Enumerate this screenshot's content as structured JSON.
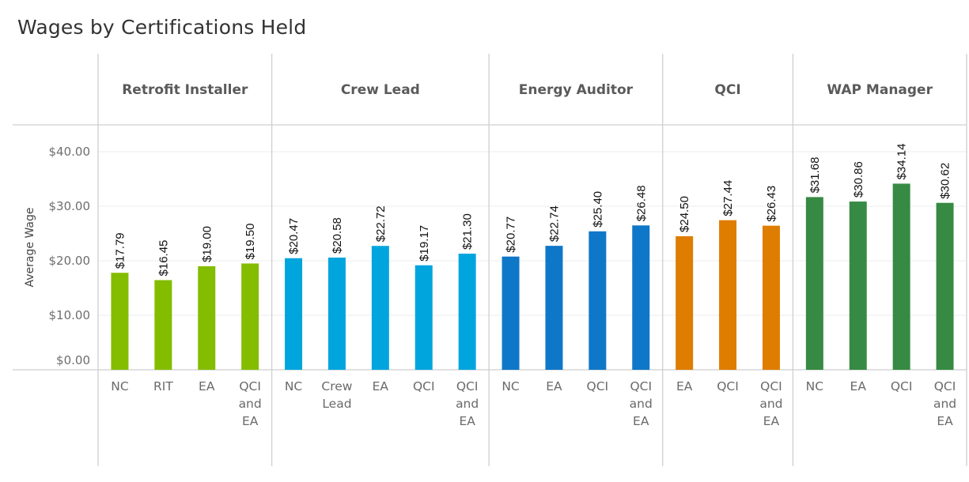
{
  "chart_data": {
    "type": "bar",
    "title": "Wages by Certifications Held",
    "xlabel": "",
    "ylabel": "Average Wage",
    "ylim": [
      0,
      40
    ],
    "yticks": [
      "$0.00",
      "$10.00",
      "$20.00",
      "$30.00",
      "$40.00"
    ],
    "ytick_values": [
      0,
      10,
      20,
      30,
      40
    ],
    "grid": true,
    "value_format": "currency-2dp",
    "panels": [
      {
        "name": "Retrofit Installer",
        "color": "#84bc00",
        "categories": [
          [
            "NC"
          ],
          [
            "RIT"
          ],
          [
            "EA"
          ],
          [
            "QCI",
            "and",
            "EA"
          ]
        ],
        "values": [
          17.79,
          16.45,
          19.0,
          19.5
        ],
        "labels": [
          "$17.79",
          "$16.45",
          "$19.00",
          "$19.50"
        ]
      },
      {
        "name": "Crew Lead",
        "color": "#00a5de",
        "categories": [
          [
            "NC"
          ],
          [
            "Crew",
            "Lead"
          ],
          [
            "EA"
          ],
          [
            "QCI"
          ],
          [
            "QCI",
            "and",
            "EA"
          ]
        ],
        "values": [
          20.47,
          20.58,
          22.72,
          19.17,
          21.3
        ],
        "labels": [
          "$20.47",
          "$20.58",
          "$22.72",
          "$19.17",
          "$21.30"
        ]
      },
      {
        "name": "Energy Auditor",
        "color": "#0f77c8",
        "categories": [
          [
            "NC"
          ],
          [
            "EA"
          ],
          [
            "QCI"
          ],
          [
            "QCI",
            "and",
            "EA"
          ]
        ],
        "values": [
          20.77,
          22.74,
          25.4,
          26.48
        ],
        "labels": [
          "$20.77",
          "$22.74",
          "$25.40",
          "$26.48"
        ]
      },
      {
        "name": "QCI",
        "color": "#df7d00",
        "categories": [
          [
            "EA"
          ],
          [
            "QCI"
          ],
          [
            "QCI",
            "and",
            "EA"
          ]
        ],
        "values": [
          24.5,
          27.44,
          26.43
        ],
        "labels": [
          "$24.50",
          "$27.44",
          "$26.43"
        ]
      },
      {
        "name": "WAP Manager",
        "color": "#378a43",
        "categories": [
          [
            "NC"
          ],
          [
            "EA"
          ],
          [
            "QCI"
          ],
          [
            "QCI",
            "and",
            "EA"
          ]
        ],
        "values": [
          31.68,
          30.86,
          34.14,
          30.62
        ],
        "labels": [
          "$31.68",
          "$30.86",
          "$34.14",
          "$30.62"
        ]
      }
    ]
  }
}
